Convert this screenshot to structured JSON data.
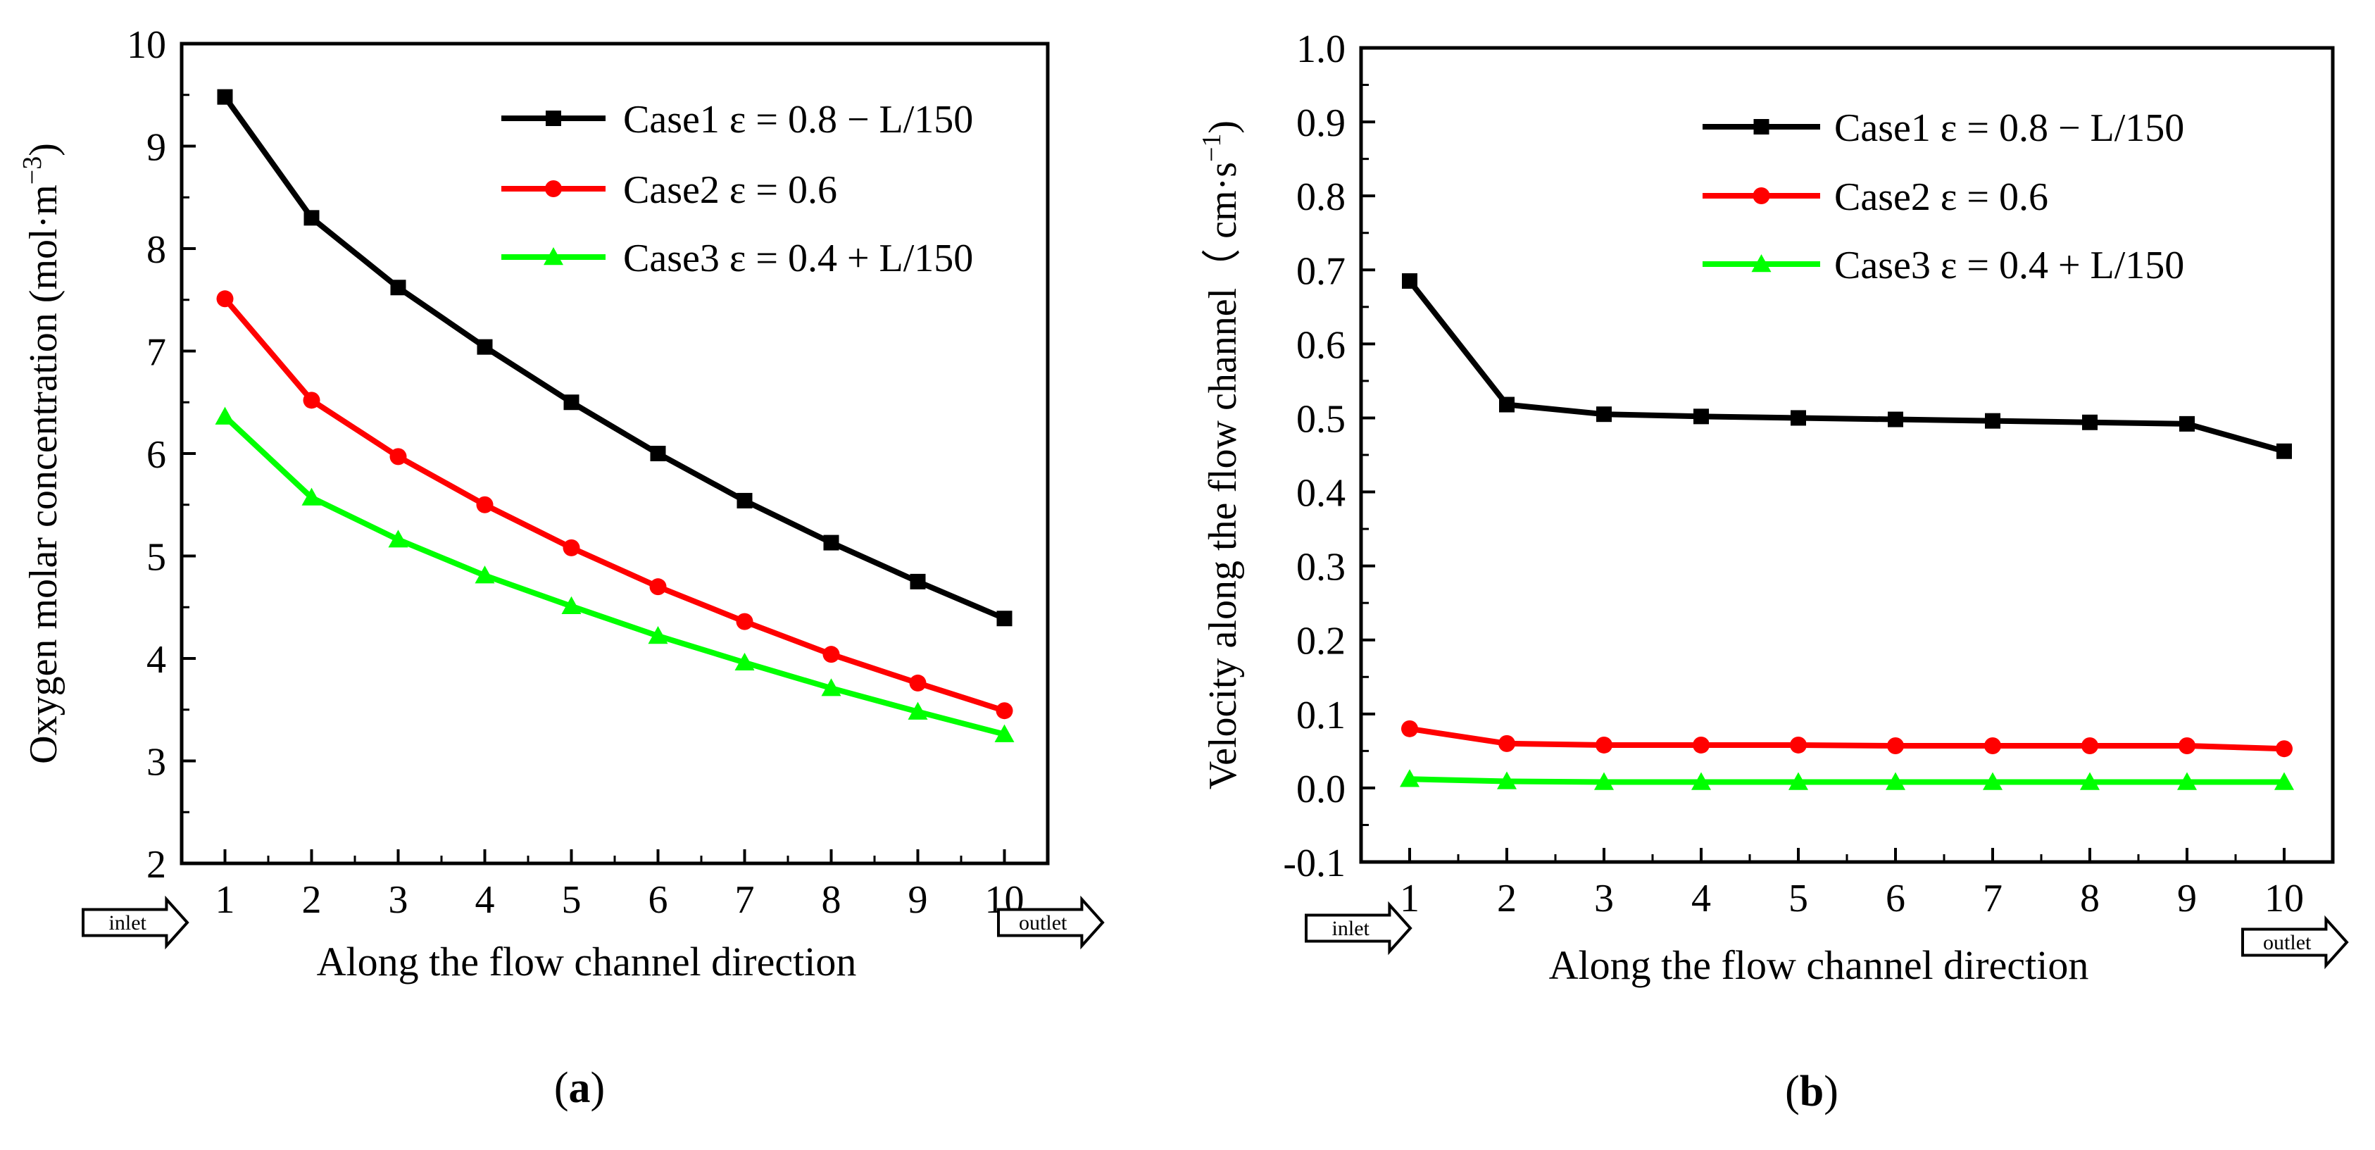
{
  "chart_data": [
    {
      "type": "line",
      "panel_label_open": "(",
      "panel_label": "a",
      "panel_label_close": ")",
      "xlabel": "Along the flow channel direction",
      "ylabel": "Oxygen molar concentration (mol·m",
      "ylabel_sup": "−3",
      "ylabel_close": ")",
      "x": [
        1,
        2,
        3,
        4,
        5,
        6,
        7,
        8,
        9,
        10
      ],
      "xlim": [
        0.5,
        10.5
      ],
      "ylim": [
        2,
        10
      ],
      "yticks": [
        "2",
        "3",
        "4",
        "5",
        "6",
        "7",
        "8",
        "9",
        "10"
      ],
      "xticks": [
        "1",
        "2",
        "3",
        "4",
        "5",
        "6",
        "7",
        "8",
        "9",
        "10"
      ],
      "inlet_label": "inlet",
      "outlet_label": "outlet",
      "legend_position": "top-right",
      "series": [
        {
          "name": "Case1 ε = 0.8 − L/150",
          "color": "#000000",
          "marker": "square",
          "values": [
            9.48,
            8.3,
            7.62,
            7.04,
            6.5,
            6.0,
            5.54,
            5.13,
            4.75,
            4.39
          ]
        },
        {
          "name": "Case2 ε = 0.6",
          "color": "#ff0000",
          "marker": "circle",
          "values": [
            7.51,
            6.52,
            5.97,
            5.5,
            5.08,
            4.7,
            4.36,
            4.04,
            3.76,
            3.49
          ]
        },
        {
          "name": "Case3 ε = 0.4 + L/150",
          "color": "#00ff00",
          "marker": "triangle",
          "values": [
            6.36,
            5.57,
            5.16,
            4.81,
            4.51,
            4.22,
            3.96,
            3.71,
            3.48,
            3.26
          ]
        }
      ]
    },
    {
      "type": "line",
      "panel_label_open": "(",
      "panel_label": "b",
      "panel_label_close": ")",
      "xlabel": "Along the flow channel direction",
      "ylabel": "Velocity along the flow channel（ cm·s",
      "ylabel_sup": "−1",
      "ylabel_close": ")",
      "x": [
        1,
        2,
        3,
        4,
        5,
        6,
        7,
        8,
        9,
        10
      ],
      "xlim": [
        0.5,
        10.5
      ],
      "ylim": [
        -0.1,
        1.0
      ],
      "yticks": [
        "-0.1",
        "0.0",
        "0.1",
        "0.2",
        "0.3",
        "0.4",
        "0.5",
        "0.6",
        "0.7",
        "0.8",
        "0.9",
        "1.0"
      ],
      "xticks": [
        "1",
        "2",
        "3",
        "4",
        "5",
        "6",
        "7",
        "8",
        "9",
        "10"
      ],
      "inlet_label": "inlet",
      "outlet_label": "outlet",
      "legend_position": "top-right",
      "series": [
        {
          "name": "Case1 ε = 0.8 − L/150",
          "color": "#000000",
          "marker": "square",
          "values": [
            0.685,
            0.518,
            0.505,
            0.502,
            0.5,
            0.498,
            0.496,
            0.494,
            0.492,
            0.455
          ]
        },
        {
          "name": "Case2 ε = 0.6",
          "color": "#ff0000",
          "marker": "circle",
          "values": [
            0.08,
            0.06,
            0.058,
            0.058,
            0.058,
            0.057,
            0.057,
            0.057,
            0.057,
            0.053
          ]
        },
        {
          "name": "Case3 ε = 0.4 + L/150",
          "color": "#00ff00",
          "marker": "triangle",
          "values": [
            0.012,
            0.009,
            0.008,
            0.008,
            0.008,
            0.008,
            0.008,
            0.008,
            0.008,
            0.008
          ]
        }
      ]
    }
  ]
}
